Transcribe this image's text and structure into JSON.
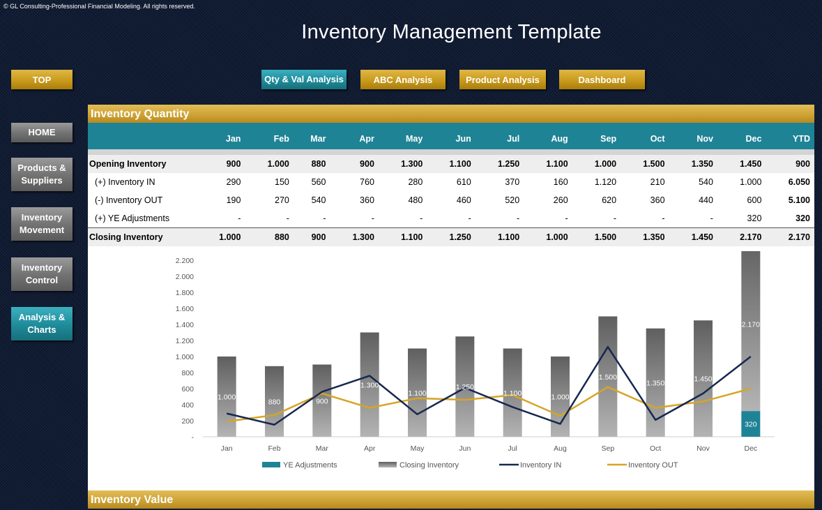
{
  "copyright": "© GL Consulting-Professional Financial Modeling. All rights reserved.",
  "title": "Inventory Management  Template",
  "top_button": "TOP",
  "tabs": [
    "Qty & Val Analysis",
    "ABC Analysis",
    "Product Analysis",
    "Dashboard"
  ],
  "sidebar": [
    "HOME",
    "Products & Suppliers",
    "Inventory Movement",
    "Inventory Control",
    "Analysis & Charts"
  ],
  "section_quantity": "Inventory Quantity",
  "section_value": "Inventory Value",
  "table": {
    "headers": [
      "",
      "Jan",
      "Feb",
      "Mar",
      "Apr",
      "May",
      "Jun",
      "Jul",
      "Aug",
      "Sep",
      "Oct",
      "Nov",
      "Dec",
      "YTD"
    ],
    "rows": [
      {
        "label": "Opening Inventory",
        "values": [
          "900",
          "1.000",
          "880",
          "900",
          "1.300",
          "1.100",
          "1.250",
          "1.100",
          "1.000",
          "1.500",
          "1.350",
          "1.450",
          "900"
        ]
      },
      {
        "label": "(+) Inventory IN",
        "values": [
          "290",
          "150",
          "560",
          "760",
          "280",
          "610",
          "370",
          "160",
          "1.120",
          "210",
          "540",
          "1.000",
          "6.050"
        ]
      },
      {
        "label": "(-) Inventory OUT",
        "values": [
          "190",
          "270",
          "540",
          "360",
          "480",
          "460",
          "520",
          "260",
          "620",
          "360",
          "440",
          "600",
          "5.100"
        ]
      },
      {
        "label": "(+) YE Adjustments",
        "values": [
          "-",
          "-",
          "-",
          "-",
          "-",
          "-",
          "-",
          "-",
          "-",
          "-",
          "-",
          "320",
          "320"
        ]
      },
      {
        "label": "Closing Inventory",
        "values": [
          "1.000",
          "880",
          "900",
          "1.300",
          "1.100",
          "1.250",
          "1.100",
          "1.000",
          "1.500",
          "1.350",
          "1.450",
          "2.170",
          "2.170"
        ]
      }
    ]
  },
  "chart_data": {
    "type": "bar",
    "categories": [
      "Jan",
      "Feb",
      "Mar",
      "Apr",
      "May",
      "Jun",
      "Jul",
      "Aug",
      "Sep",
      "Oct",
      "Nov",
      "Dec"
    ],
    "series": [
      {
        "name": "YE Adjustments",
        "type": "bar",
        "values": [
          0,
          0,
          0,
          0,
          0,
          0,
          0,
          0,
          0,
          0,
          0,
          320
        ],
        "labels": [
          "",
          "",
          "",
          "",
          "",
          "",
          "",
          "",
          "",
          "",
          "",
          "320"
        ]
      },
      {
        "name": "Closing Inventory",
        "type": "bar",
        "values": [
          1000,
          880,
          900,
          1300,
          1100,
          1250,
          1100,
          1000,
          1500,
          1350,
          1450,
          2170
        ],
        "labels": [
          "1.000",
          "880",
          "900",
          "1.300",
          "1.100",
          "1.250",
          "1.100",
          "1.000",
          "1.500",
          "1.350",
          "1.450",
          "2.170"
        ]
      },
      {
        "name": "Inventory IN",
        "type": "line",
        "values": [
          290,
          150,
          560,
          760,
          280,
          610,
          370,
          160,
          1120,
          210,
          540,
          1000
        ]
      },
      {
        "name": "Inventory OUT",
        "type": "line",
        "values": [
          190,
          270,
          540,
          360,
          480,
          460,
          520,
          260,
          620,
          360,
          440,
          600
        ]
      }
    ],
    "yticks": [
      "-",
      "200",
      "400",
      "600",
      "800",
      "1.000",
      "1.200",
      "1.400",
      "1.600",
      "1.800",
      "2.000",
      "2.200"
    ],
    "ylim": [
      0,
      2200
    ],
    "colors": {
      "ye": "#1f8396",
      "closing": "#6e6e6e",
      "in": "#16284f",
      "out": "#d6a527"
    }
  }
}
